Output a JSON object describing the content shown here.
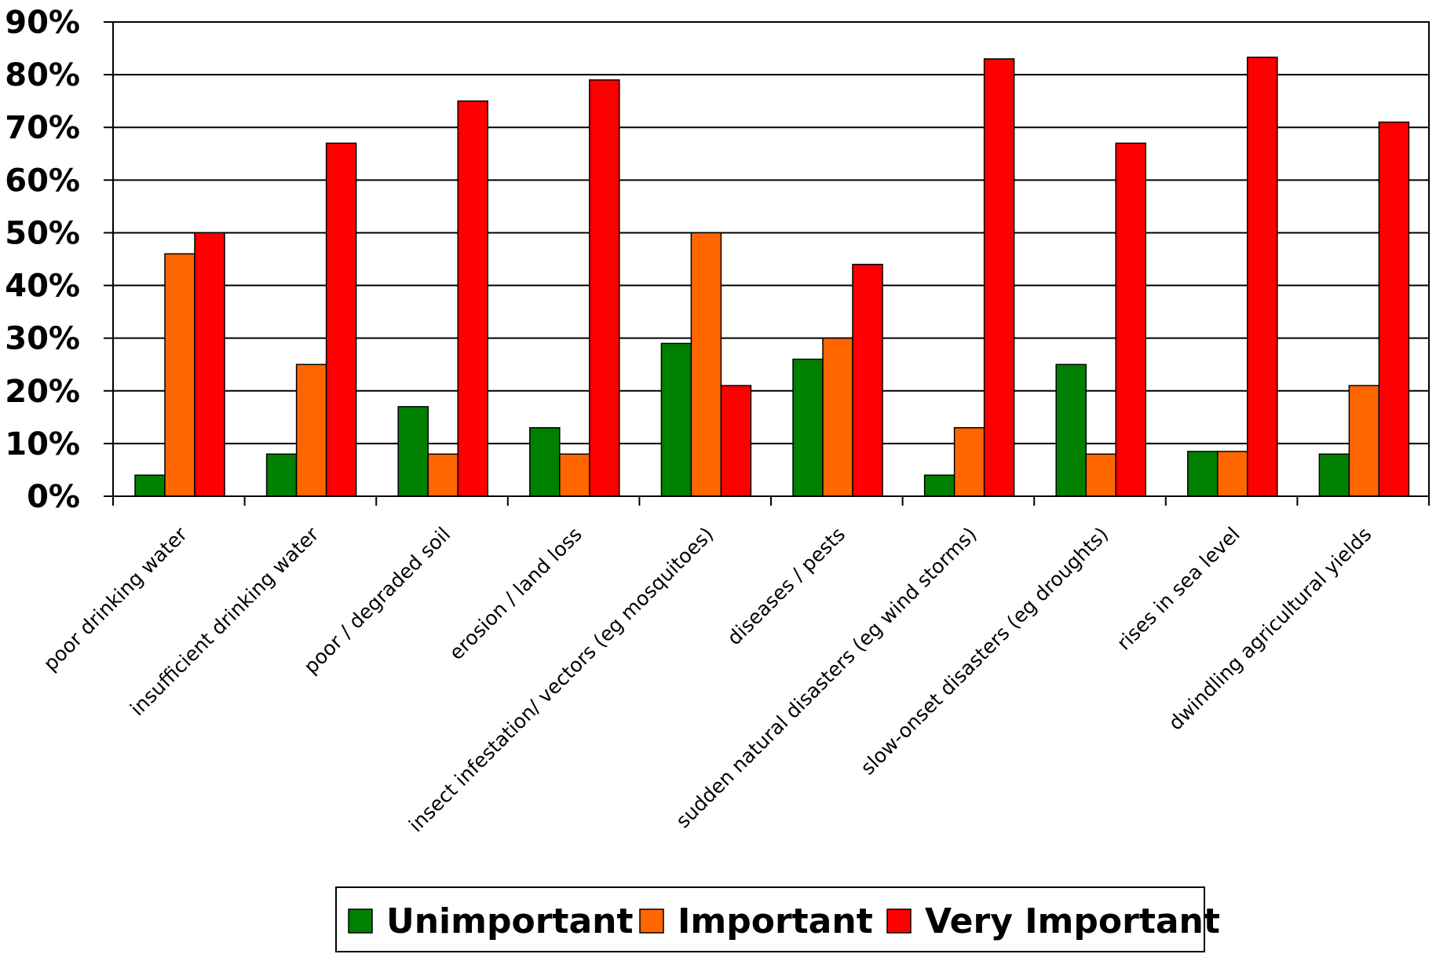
{
  "chart_data": {
    "type": "bar",
    "title": "",
    "xlabel": "",
    "ylabel": "",
    "ylim": [
      0,
      90
    ],
    "yticks": [
      "0%",
      "10%",
      "20%",
      "30%",
      "40%",
      "50%",
      "60%",
      "70%",
      "80%",
      "90%"
    ],
    "grid": true,
    "legend_position": "bottom",
    "categories": [
      "poor drinking water",
      "insufficient drinking water",
      "poor / degraded soil",
      "erosion / land loss",
      "insect infestation/ vectors (eg mosquitoes)",
      "diseases / pests",
      "sudden natural disasters (eg wind storms)",
      "slow-onset disasters (eg droughts)",
      "rises in sea level",
      "dwindling agricultural yields"
    ],
    "series": [
      {
        "name": "Unimportant",
        "color": "#008000",
        "values": [
          4,
          8,
          17,
          13,
          29,
          26,
          4,
          25,
          8.5,
          8
        ]
      },
      {
        "name": "Important",
        "color": "#ff6600",
        "values": [
          46,
          25,
          8,
          8,
          50,
          30,
          13,
          8,
          8.5,
          21
        ]
      },
      {
        "name": "Very Important",
        "color": "#ff0000",
        "values": [
          50,
          67,
          75,
          79,
          21,
          44,
          83,
          67,
          83.3,
          71
        ]
      }
    ]
  }
}
